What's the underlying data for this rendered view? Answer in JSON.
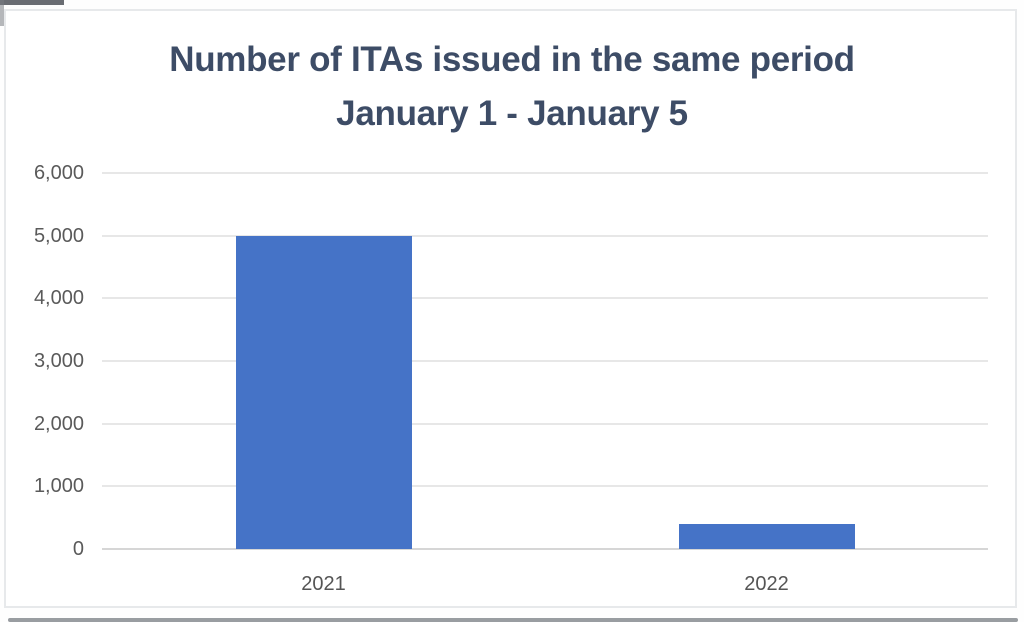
{
  "title": {
    "line1": "Number of ITAs issued in the same period",
    "line2": "January 1 - January 5",
    "color": "#3d4c66"
  },
  "chart_data": {
    "type": "bar",
    "title": "Number of ITAs issued in the same period",
    "subtitle": "January 1 - January 5",
    "categories": [
      "2021",
      "2022"
    ],
    "values": [
      5000,
      400
    ],
    "xlabel": "",
    "ylabel": "",
    "ylim": [
      0,
      6000
    ],
    "ytick_step": 1000,
    "ytick_labels": [
      "0",
      "1,000",
      "2,000",
      "3,000",
      "4,000",
      "5,000",
      "6,000"
    ],
    "grid": true,
    "legend": false,
    "bar_color": "#4573c7",
    "gridline_color": "#e7e7e7",
    "axis_line_color": "#d6d6d6",
    "ytick_label_color": "#5a5a5a",
    "xtick_label_color": "#555555"
  }
}
